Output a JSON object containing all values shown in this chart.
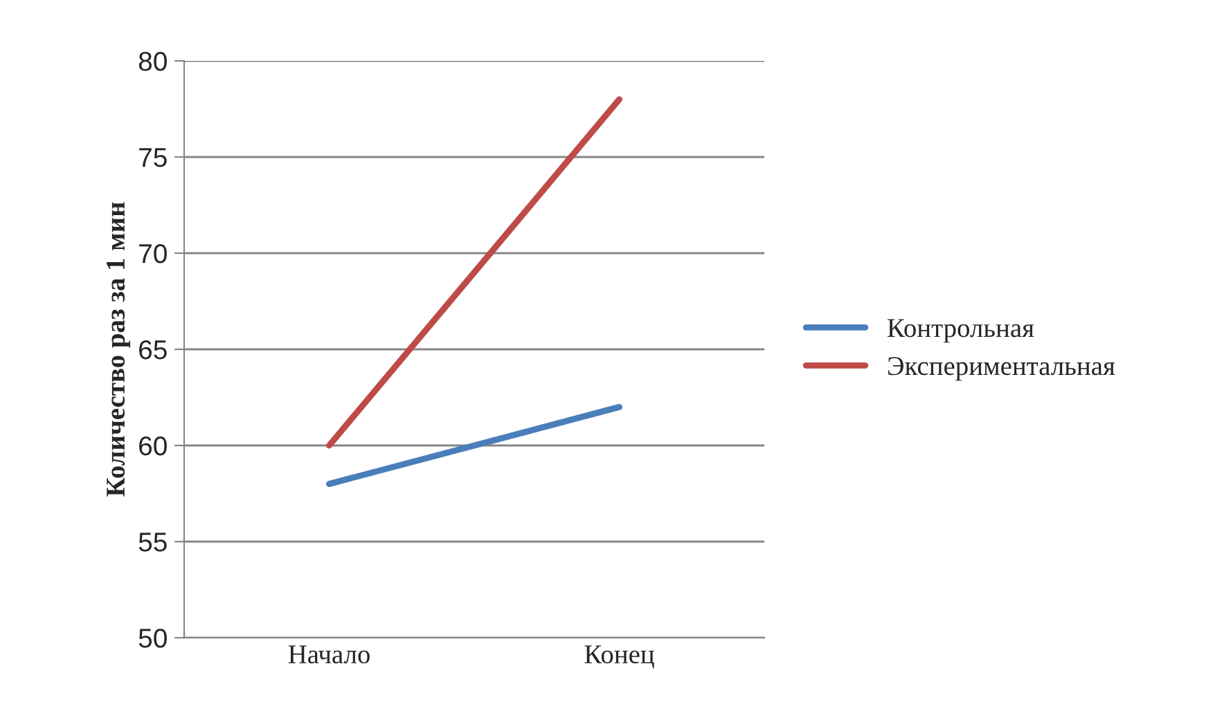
{
  "chart_data": {
    "type": "line",
    "ylabel": "Количество раз за 1 мин",
    "categories": [
      "Начало",
      "Конец"
    ],
    "series": [
      {
        "name": "Контрольная",
        "color": "#4a7ebb",
        "values": [
          58,
          62
        ]
      },
      {
        "name": "Экспериментальная",
        "color": "#be4b48",
        "values": [
          60,
          78
        ]
      }
    ],
    "ylim": [
      50,
      80
    ],
    "yticks": [
      50,
      55,
      60,
      65,
      70,
      75,
      80
    ],
    "grid": "y",
    "legend": "right",
    "marker": "none",
    "line_style": "solid"
  }
}
